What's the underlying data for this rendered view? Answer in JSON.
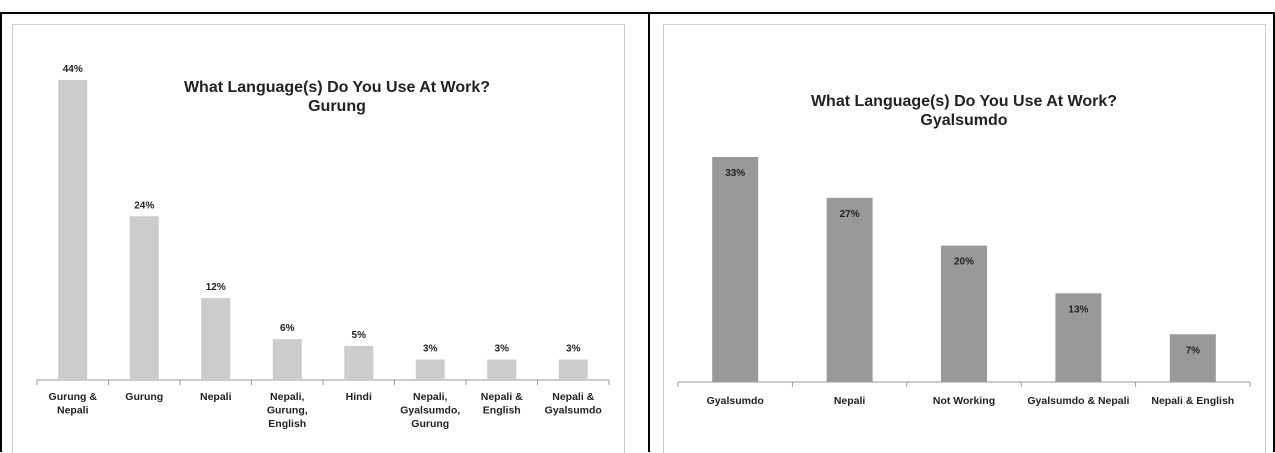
{
  "chart_data": [
    {
      "type": "bar",
      "title": "What Language(s) Do You Use At Work?",
      "subtitle": "Gurung",
      "categories": [
        "Gurung & Nepali",
        "Gurung",
        "Nepali",
        "Nepali, Gurung, English",
        "Hindi",
        "Nepali, Gyalsumdo, Gurung",
        "Nepali & English",
        "Nepali & Gyalsumdo"
      ],
      "values": [
        44,
        24,
        12,
        6,
        5,
        3,
        3,
        3
      ],
      "data_labels": [
        "44%",
        "24%",
        "12%",
        "6%",
        "5%",
        "3%",
        "3%",
        "3%"
      ],
      "ylim": [
        0,
        45
      ],
      "bar_color": "#cccccc",
      "grid": false,
      "legend": "none"
    },
    {
      "type": "bar",
      "title": "What Language(s) Do You Use At Work?",
      "subtitle": "Gyalsumdo",
      "categories": [
        "Gyalsumdo",
        "Nepali",
        "Not Working",
        "Gyalsumdo & Nepali",
        "Nepali & English"
      ],
      "values": [
        33,
        27,
        20,
        13,
        7
      ],
      "data_labels": [
        "33%",
        "27%",
        "20%",
        "13%",
        "7%"
      ],
      "ylim": [
        0,
        45
      ],
      "bar_color": "#999999",
      "grid": false,
      "legend": "none"
    }
  ]
}
